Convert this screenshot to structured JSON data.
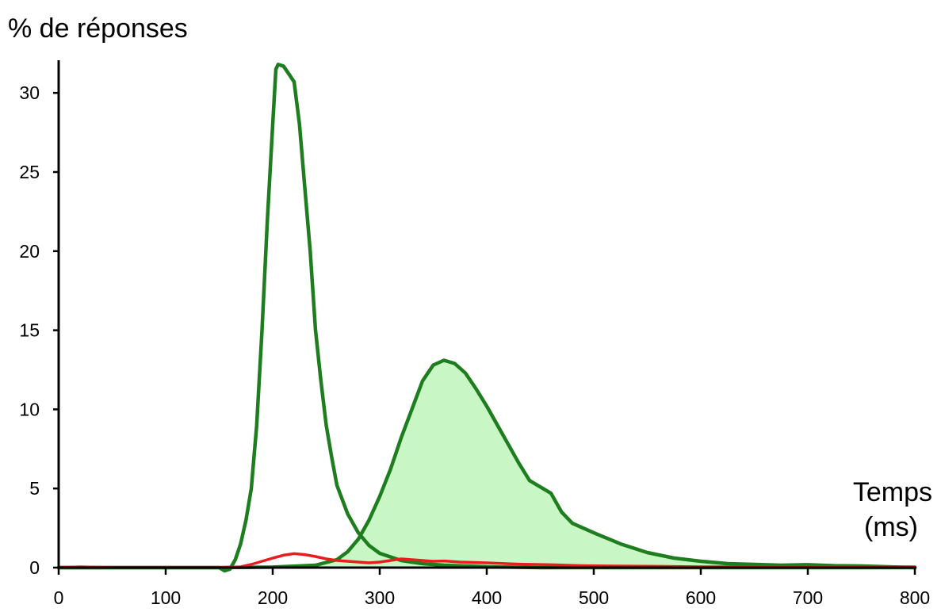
{
  "chart_data": {
    "type": "line",
    "title": "",
    "ylabel": "% de réponses",
    "xlabel_lines": [
      "Temps",
      "(ms)"
    ],
    "xlim": [
      0,
      800
    ],
    "ylim": [
      0,
      31
    ],
    "x_ticks": [
      0,
      100,
      200,
      300,
      400,
      500,
      600,
      700,
      800
    ],
    "y_ticks": [
      0,
      5,
      10,
      15,
      20,
      25,
      30
    ],
    "grid": false,
    "legend": "none",
    "series": [
      {
        "color": "#1e7d1e",
        "stroke_width": 4.5,
        "fill": "none",
        "points": [
          [
            0,
            0
          ],
          [
            150,
            0
          ],
          [
            155,
            -0.2
          ],
          [
            160,
            -0.1
          ],
          [
            165,
            0.5
          ],
          [
            170,
            1.5
          ],
          [
            175,
            3
          ],
          [
            180,
            5
          ],
          [
            185,
            9
          ],
          [
            190,
            15
          ],
          [
            195,
            22
          ],
          [
            200,
            28
          ],
          [
            203,
            31.5
          ],
          [
            205,
            31.8
          ],
          [
            210,
            31.7
          ],
          [
            215,
            31.2
          ],
          [
            220,
            30.7
          ],
          [
            225,
            28
          ],
          [
            230,
            24
          ],
          [
            235,
            20
          ],
          [
            240,
            15
          ],
          [
            245,
            11.8
          ],
          [
            250,
            9
          ],
          [
            255,
            7
          ],
          [
            260,
            5.2
          ],
          [
            270,
            3.4
          ],
          [
            280,
            2.2
          ],
          [
            290,
            1.4
          ],
          [
            300,
            0.9
          ],
          [
            320,
            0.45
          ],
          [
            340,
            0.25
          ],
          [
            360,
            0.15
          ],
          [
            400,
            0.05
          ],
          [
            450,
            0
          ],
          [
            800,
            0
          ]
        ]
      },
      {
        "color": "#1e7d1e",
        "stroke_width": 4.5,
        "fill": "#c8f7c5",
        "points": [
          [
            0,
            0
          ],
          [
            150,
            0
          ],
          [
            200,
            0.03
          ],
          [
            240,
            0.15
          ],
          [
            260,
            0.5
          ],
          [
            270,
            1
          ],
          [
            280,
            1.8
          ],
          [
            290,
            3
          ],
          [
            300,
            4.5
          ],
          [
            310,
            6.2
          ],
          [
            320,
            8.2
          ],
          [
            330,
            10
          ],
          [
            340,
            11.8
          ],
          [
            350,
            12.8
          ],
          [
            360,
            13.1
          ],
          [
            370,
            12.9
          ],
          [
            380,
            12.3
          ],
          [
            390,
            11.3
          ],
          [
            400,
            10.2
          ],
          [
            410,
            9
          ],
          [
            420,
            7.8
          ],
          [
            430,
            6.6
          ],
          [
            440,
            5.5
          ],
          [
            450,
            5.1
          ],
          [
            460,
            4.7
          ],
          [
            470,
            3.5
          ],
          [
            480,
            2.8
          ],
          [
            490,
            2.5
          ],
          [
            500,
            2.2
          ],
          [
            525,
            1.5
          ],
          [
            550,
            0.95
          ],
          [
            575,
            0.6
          ],
          [
            600,
            0.4
          ],
          [
            625,
            0.25
          ],
          [
            650,
            0.2
          ],
          [
            675,
            0.15
          ],
          [
            700,
            0.18
          ],
          [
            725,
            0.12
          ],
          [
            750,
            0.1
          ],
          [
            775,
            0.05
          ],
          [
            800,
            0
          ]
        ]
      },
      {
        "color": "#e81e1e",
        "stroke_width": 3.5,
        "fill": "none",
        "points": [
          [
            0,
            0
          ],
          [
            20,
            0.05
          ],
          [
            50,
            0
          ],
          [
            100,
            0
          ],
          [
            150,
            0
          ],
          [
            170,
            0.05
          ],
          [
            180,
            0.2
          ],
          [
            190,
            0.4
          ],
          [
            200,
            0.6
          ],
          [
            210,
            0.78
          ],
          [
            220,
            0.88
          ],
          [
            230,
            0.82
          ],
          [
            240,
            0.7
          ],
          [
            250,
            0.55
          ],
          [
            260,
            0.45
          ],
          [
            270,
            0.4
          ],
          [
            280,
            0.35
          ],
          [
            290,
            0.3
          ],
          [
            300,
            0.35
          ],
          [
            310,
            0.45
          ],
          [
            320,
            0.55
          ],
          [
            330,
            0.5
          ],
          [
            340,
            0.45
          ],
          [
            350,
            0.4
          ],
          [
            360,
            0.42
          ],
          [
            375,
            0.35
          ],
          [
            400,
            0.3
          ],
          [
            430,
            0.22
          ],
          [
            460,
            0.18
          ],
          [
            490,
            0.12
          ],
          [
            520,
            0.1
          ],
          [
            560,
            0.08
          ],
          [
            600,
            0.05
          ],
          [
            650,
            0.05
          ],
          [
            700,
            0.05
          ],
          [
            750,
            0.05
          ],
          [
            800,
            0.05
          ]
        ]
      }
    ]
  }
}
